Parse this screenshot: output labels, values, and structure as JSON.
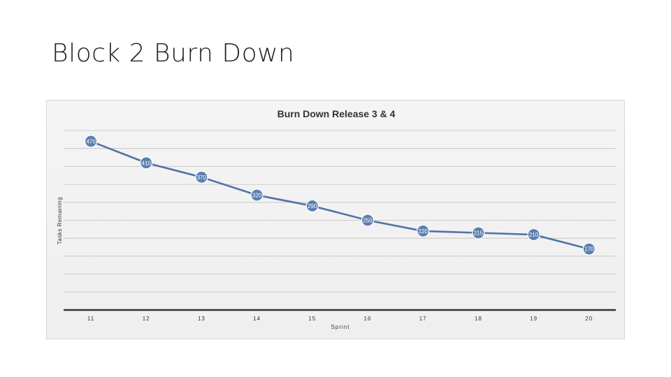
{
  "slide": {
    "title": "Block 2 Burn Down"
  },
  "chart_data": {
    "type": "line",
    "title": "Burn Down Release 3 & 4",
    "xlabel": "Sprint",
    "ylabel": "Tasks Remaining",
    "categories": [
      "11",
      "12",
      "13",
      "14",
      "15",
      "16",
      "17",
      "18",
      "19",
      "20"
    ],
    "series": [
      {
        "values": [
          470,
          410,
          370,
          320,
          290,
          250,
          220,
          215,
          210,
          170
        ]
      }
    ],
    "ylim": [
      0,
      500
    ],
    "grid": true,
    "legend": "none",
    "colors": {
      "line": "#4f74a6",
      "marker_fill": "#5b7fb1",
      "marker_stroke": "#ffffff",
      "label": "#ffffff",
      "grid": "#bfbfbf",
      "axis": "#333333",
      "text": "#333333"
    }
  }
}
